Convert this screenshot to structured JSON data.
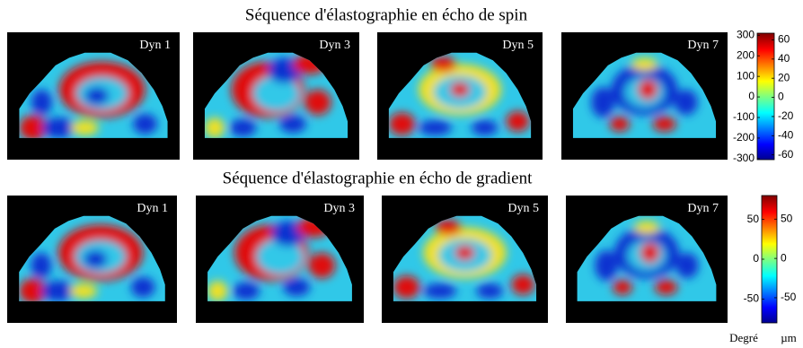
{
  "sections": [
    {
      "title": "Séquence d'élastographie en écho de spin",
      "panels": [
        "Dyn 1",
        "Dyn 3",
        "Dyn 5",
        "Dyn 7"
      ],
      "colorbar": {
        "left": {
          "lim": [
            -305,
            310
          ],
          "ticks": [
            300,
            200,
            100,
            0,
            -100,
            -200,
            -300
          ]
        },
        "right": {
          "lim": [
            -65,
            67
          ],
          "ticks": [
            60,
            40,
            20,
            0,
            -20,
            -40,
            -60
          ]
        }
      }
    },
    {
      "title": "Séquence d'élastographie en écho de gradient",
      "panels": [
        "Dyn 1",
        "Dyn 3",
        "Dyn 5",
        "Dyn 7"
      ],
      "colorbar": {
        "left": {
          "lim": [
            -80,
            80
          ],
          "ticks": [
            50,
            0,
            -50
          ]
        },
        "right": {
          "lim": [
            -82,
            80
          ],
          "ticks": [
            50,
            0,
            -50
          ]
        }
      }
    }
  ],
  "units": {
    "left": "Degré",
    "right": "µm"
  }
}
